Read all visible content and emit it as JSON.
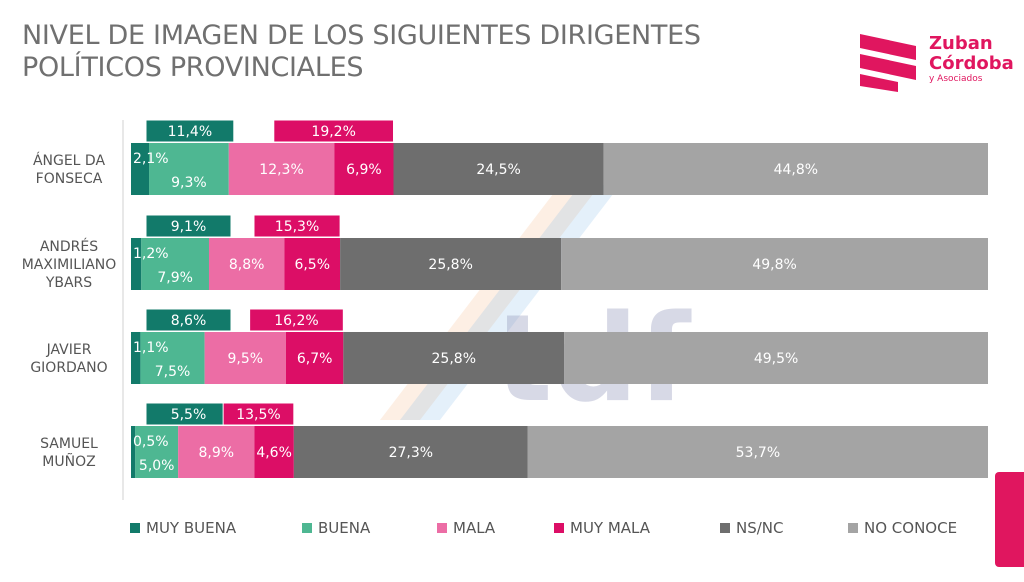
{
  "title": {
    "line1": "NIVEL DE IMAGEN DE LOS SIGUIENTES DIRIGENTES",
    "line2": "POLÍTICOS PROVINCIALES"
  },
  "logo": {
    "line1": "Zuban",
    "line2": "Córdoba",
    "line3": "y Asociados",
    "icon": "zuban-cordoba-logo-icon",
    "color": "#e0165f"
  },
  "watermark": "tdf",
  "colors": {
    "MUY BUENA": "#127a6a",
    "BUENA": "#4eb792",
    "MALA": "#ec6da5",
    "MUY MALA": "#dc0e66",
    "NS/NC": "#6e6e6e",
    "NO CONOCE": "#a4a4a4"
  },
  "chart_data": {
    "type": "bar",
    "orientation": "horizontal",
    "stacked": true,
    "categories": [
      [
        "ÁNGEL DA",
        "FONSECA"
      ],
      [
        "ANDRÉS",
        "MAXIMILIANO",
        "YBARS"
      ],
      [
        "JAVIER",
        "GIORDANO"
      ],
      [
        "SAMUEL",
        "MUÑOZ"
      ]
    ],
    "series": [
      {
        "name": "MUY BUENA",
        "values": [
          2.1,
          1.2,
          1.1,
          0.5
        ]
      },
      {
        "name": "BUENA",
        "values": [
          9.3,
          7.9,
          7.5,
          5.0
        ]
      },
      {
        "name": "MALA",
        "values": [
          12.3,
          8.8,
          9.5,
          8.9
        ]
      },
      {
        "name": "MUY MALA",
        "values": [
          6.9,
          6.5,
          6.7,
          4.6
        ]
      },
      {
        "name": "NS/NC",
        "values": [
          24.5,
          25.8,
          25.8,
          27.3
        ]
      },
      {
        "name": "NO CONOCE",
        "values": [
          44.8,
          49.8,
          49.5,
          53.7
        ]
      }
    ],
    "value_labels": [
      [
        "2,1%",
        "9,3%",
        "12,3%",
        "6,9%",
        "24,5%",
        "44,8%"
      ],
      [
        "1,2%",
        "7,9%",
        "8,8%",
        "6,5%",
        "25,8%",
        "49,8%"
      ],
      [
        "1,1%",
        "7,5%",
        "9,5%",
        "6,7%",
        "25,8%",
        "49,5%"
      ],
      [
        "0,5%",
        "5,0%",
        "8,9%",
        "4,6%",
        "27,3%",
        "53,7%"
      ]
    ],
    "positive_totals": [
      11.4,
      9.1,
      8.6,
      5.5
    ],
    "positive_labels": [
      "11,4%",
      "9,1%",
      "8,6%",
      "5,5%"
    ],
    "negative_totals": [
      19.2,
      15.3,
      16.2,
      13.5
    ],
    "negative_labels": [
      "19,2%",
      "15,3%",
      "16,2%",
      "13,5%"
    ],
    "xlim": [
      0,
      100
    ],
    "legend": {
      "placement": "bottom",
      "items": [
        "MUY BUENA",
        "BUENA",
        "MALA",
        "MUY MALA",
        "NS/NC",
        "NO CONOCE"
      ]
    }
  }
}
